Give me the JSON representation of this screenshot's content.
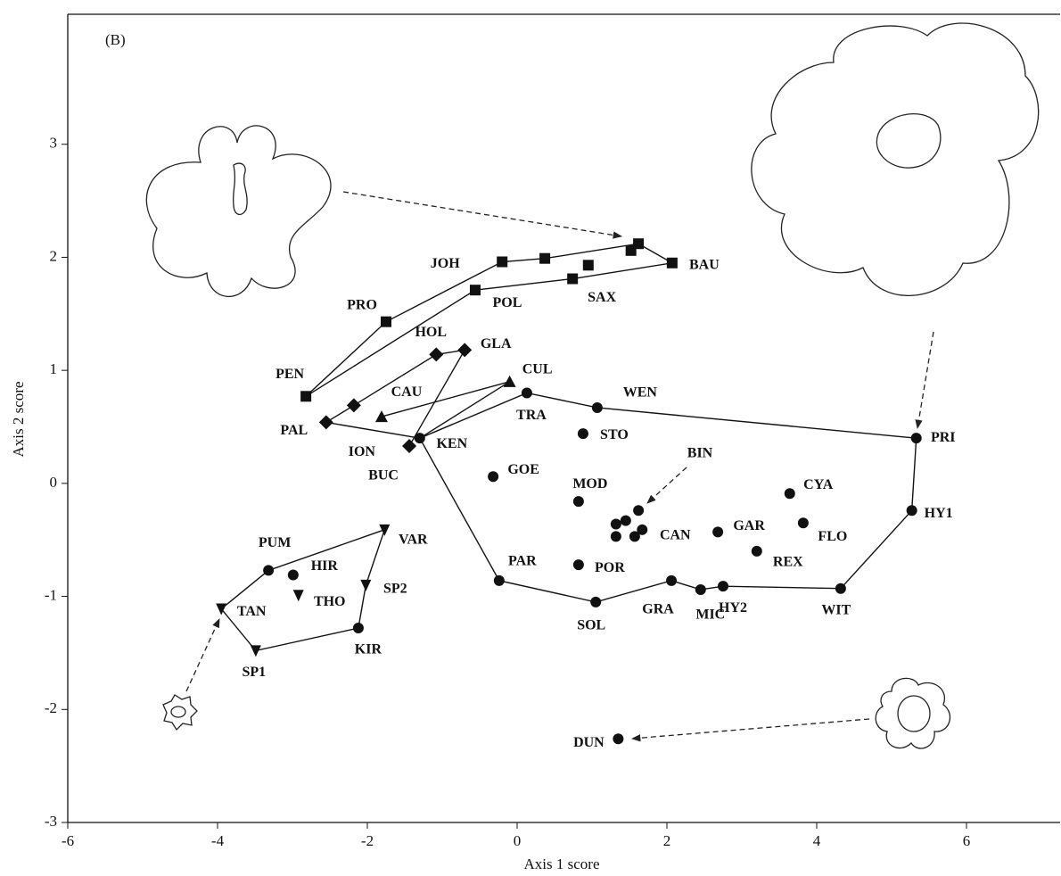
{
  "chart_data": {
    "type": "scatter",
    "panel_label": "(B)",
    "x_label": "Axis 1 score",
    "y_label": "Axis 2 score",
    "xlim": [
      -6,
      7.25
    ],
    "ylim": [
      -3,
      4.15
    ],
    "xticks": [
      -6,
      -4,
      -2,
      0,
      2,
      4,
      6
    ],
    "yticks": [
      -3,
      -2,
      -1,
      0,
      1,
      2,
      3
    ],
    "annotations": [
      "BIN"
    ],
    "series": [
      {
        "marker": "square",
        "color": "#111111",
        "x": [
          -2.82,
          -1.75,
          -0.2,
          0.37,
          0.95,
          1.52,
          1.62,
          2.07,
          0.74,
          -0.56
        ],
        "values": [
          0.77,
          1.43,
          1.96,
          1.99,
          1.93,
          2.06,
          2.12,
          1.95,
          1.81,
          1.71
        ],
        "labels": [
          "PEN",
          "PRO",
          "JOH",
          null,
          null,
          null,
          null,
          "BAU",
          "SAX",
          "POL"
        ]
      },
      {
        "marker": "diamond",
        "color": "#111111",
        "x": [
          -2.55,
          -2.18,
          -1.08,
          -0.7,
          -1.44
        ],
        "values": [
          0.54,
          0.69,
          1.14,
          1.18,
          0.33
        ],
        "labels": [
          "PAL",
          "ION",
          "HOL",
          "GLA",
          "BUC"
        ]
      },
      {
        "marker": "triangle-up",
        "color": "#111111",
        "x": [
          -0.1,
          -1.81
        ],
        "values": [
          0.9,
          0.59
        ],
        "labels": [
          "CUL",
          "CAU"
        ]
      },
      {
        "marker": "triangle-down",
        "color": "#111111",
        "x": [
          -1.77,
          -2.92,
          -2.02,
          -3.95,
          -3.49
        ],
        "values": [
          -0.41,
          -0.99,
          -0.9,
          -1.11,
          -1.48
        ],
        "labels": [
          "VAR",
          "THO",
          "SP2",
          "TAN",
          "SP1"
        ]
      },
      {
        "marker": "circle",
        "color": "#111111",
        "x": [
          -1.3,
          0.13,
          1.07,
          5.33,
          5.27,
          4.32,
          2.75,
          2.45,
          2.06,
          1.05,
          -0.24,
          0.88,
          -0.32,
          0.82,
          0.82,
          1.62,
          1.45,
          1.32,
          1.32,
          1.57,
          1.67,
          2.68,
          3.64,
          3.82,
          3.2,
          1.35,
          -3.32,
          -2.99,
          -2.12
        ],
        "values": [
          0.4,
          0.8,
          0.67,
          0.4,
          -0.24,
          -0.93,
          -0.91,
          -0.94,
          -0.86,
          -1.05,
          -0.86,
          0.44,
          0.06,
          -0.16,
          -0.72,
          -0.24,
          -0.33,
          -0.36,
          -0.47,
          -0.47,
          -0.41,
          -0.43,
          -0.09,
          -0.35,
          -0.6,
          -2.26,
          -0.77,
          -0.81,
          -1.28
        ],
        "labels": [
          "KEN",
          "TRA",
          "WEN",
          "PRI",
          "HY1",
          "WIT",
          "HY2",
          "MIC",
          "GRA",
          "SOL",
          "PAR",
          "STO",
          "GOE",
          "MOD",
          "POR",
          null,
          null,
          null,
          null,
          null,
          "CAN",
          "GAR",
          "CYA",
          "FLO",
          "REX",
          "DUN",
          "PUM",
          "HIR",
          "KIR"
        ]
      }
    ]
  }
}
